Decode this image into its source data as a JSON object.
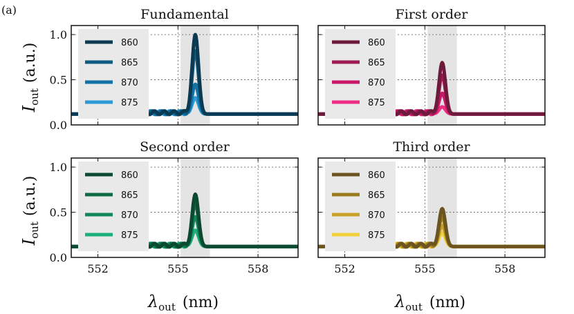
{
  "figure": {
    "panel_label": "(a)"
  },
  "axis_text": {
    "ylabel_main": "I",
    "ylabel_sub": "out",
    "ylabel_unit": "(a.u.)",
    "xlabel_main": "λ",
    "xlabel_sub": "out",
    "xlabel_unit": "(nm)"
  },
  "chart_data": [
    {
      "type": "line",
      "title": "Fundamental",
      "xlabel": "λout (nm)",
      "ylabel": "Iout (a.u.)",
      "xlim": [
        551,
        559.5
      ],
      "ylim": [
        0,
        1.1
      ],
      "xticks": [
        552,
        555,
        558
      ],
      "yticks": [
        0.0,
        0.5,
        1.0
      ],
      "ytick_labels": [
        "0.0",
        "0.5",
        "1.0"
      ],
      "shaded_region": [
        555.1,
        556.2
      ],
      "grid": true,
      "legend_position": "upper-left",
      "baseline": 0.12,
      "peak_center": 555.65,
      "peak_width": 0.12,
      "series": [
        {
          "name": "860",
          "color": "#0b3a52",
          "peak": 1.0
        },
        {
          "name": "865",
          "color": "#0e5a80",
          "peak": 0.82
        },
        {
          "name": "870",
          "color": "#1172a8",
          "peak": 0.45
        },
        {
          "name": "875",
          "color": "#2a9bd4",
          "peak": 0.3
        }
      ]
    },
    {
      "type": "line",
      "title": "First order",
      "xlabel": "λout (nm)",
      "ylabel": "Iout (a.u.)",
      "xlim": [
        551,
        559.5
      ],
      "ylim": [
        0,
        1.1
      ],
      "xticks": [
        552,
        555,
        558
      ],
      "yticks": [
        0.0,
        0.5,
        1.0
      ],
      "ytick_labels": [
        "0.0",
        "0.5",
        "1.0"
      ],
      "shaded_region": [
        555.1,
        556.2
      ],
      "grid": true,
      "legend_position": "upper-left",
      "baseline": 0.12,
      "peak_center": 555.65,
      "peak_width": 0.12,
      "series": [
        {
          "name": "860",
          "color": "#6e1a3c",
          "peak": 0.69
        },
        {
          "name": "865",
          "color": "#9e1a52",
          "peak": 0.55
        },
        {
          "name": "870",
          "color": "#c8186a",
          "peak": 0.35
        },
        {
          "name": "875",
          "color": "#ef2f86",
          "peak": 0.2
        }
      ]
    },
    {
      "type": "line",
      "title": "Second order",
      "xlabel": "λout (nm)",
      "ylabel": "Iout (a.u.)",
      "xlim": [
        551,
        559.5
      ],
      "ylim": [
        0,
        1.1
      ],
      "xticks": [
        552,
        555,
        558
      ],
      "yticks": [
        0.0,
        0.5,
        1.0
      ],
      "ytick_labels": [
        "0.0",
        "0.5",
        "1.0"
      ],
      "shaded_region": [
        555.1,
        556.2
      ],
      "grid": true,
      "legend_position": "upper-left",
      "baseline": 0.12,
      "peak_center": 555.65,
      "peak_width": 0.12,
      "series": [
        {
          "name": "860",
          "color": "#0b4a30",
          "peak": 0.7
        },
        {
          "name": "865",
          "color": "#0f6a44",
          "peak": 0.6
        },
        {
          "name": "870",
          "color": "#12875a",
          "peak": 0.45
        },
        {
          "name": "875",
          "color": "#1bb07a",
          "peak": 0.3
        }
      ]
    },
    {
      "type": "line",
      "title": "Third order",
      "xlabel": "λout (nm)",
      "ylabel": "Iout (a.u.)",
      "xlim": [
        551,
        559.5
      ],
      "ylim": [
        0,
        1.1
      ],
      "xticks": [
        552,
        555,
        558
      ],
      "yticks": [
        0.0,
        0.5,
        1.0
      ],
      "ytick_labels": [
        "0.0",
        "0.5",
        "1.0"
      ],
      "shaded_region": [
        555.1,
        556.2
      ],
      "grid": true,
      "legend_position": "upper-left",
      "baseline": 0.12,
      "peak_center": 555.65,
      "peak_width": 0.12,
      "series": [
        {
          "name": "860",
          "color": "#6b5420",
          "peak": 0.54
        },
        {
          "name": "865",
          "color": "#9a7a1e",
          "peak": 0.45
        },
        {
          "name": "870",
          "color": "#c9a228",
          "peak": 0.35
        },
        {
          "name": "875",
          "color": "#f2d23c",
          "peak": 0.27
        }
      ]
    }
  ]
}
